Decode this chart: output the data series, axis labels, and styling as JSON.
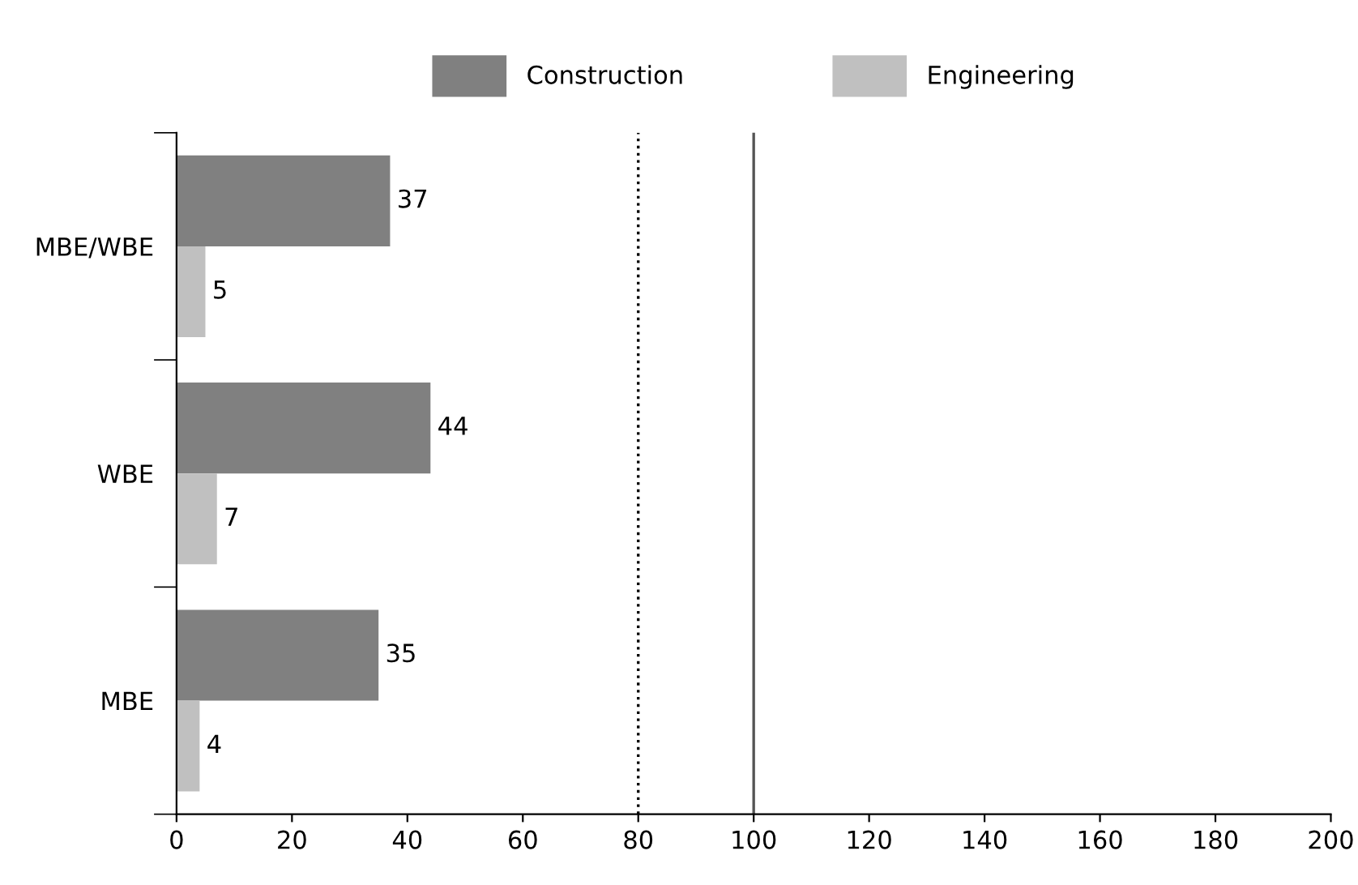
{
  "chart_data": {
    "type": "bar",
    "orientation": "horizontal",
    "categories": [
      "MBE/WBE",
      "WBE",
      "MBE"
    ],
    "series": [
      {
        "name": "Construction",
        "color": "#808080",
        "values": [
          37,
          44,
          35
        ]
      },
      {
        "name": "Engineering",
        "color": "#c0c0c0",
        "values": [
          5,
          7,
          4
        ]
      }
    ],
    "xlim": [
      0,
      200
    ],
    "xticks": [
      0,
      20,
      40,
      60,
      80,
      100,
      120,
      140,
      160,
      180,
      200
    ],
    "ref_lines": [
      {
        "axis": "x",
        "value": 80,
        "line_style": "dotted",
        "color": "#000000"
      },
      {
        "axis": "x",
        "value": 100,
        "line_style": "solid",
        "color": "#555555"
      }
    ],
    "data_labels": true,
    "legend": "top",
    "grid": false
  }
}
